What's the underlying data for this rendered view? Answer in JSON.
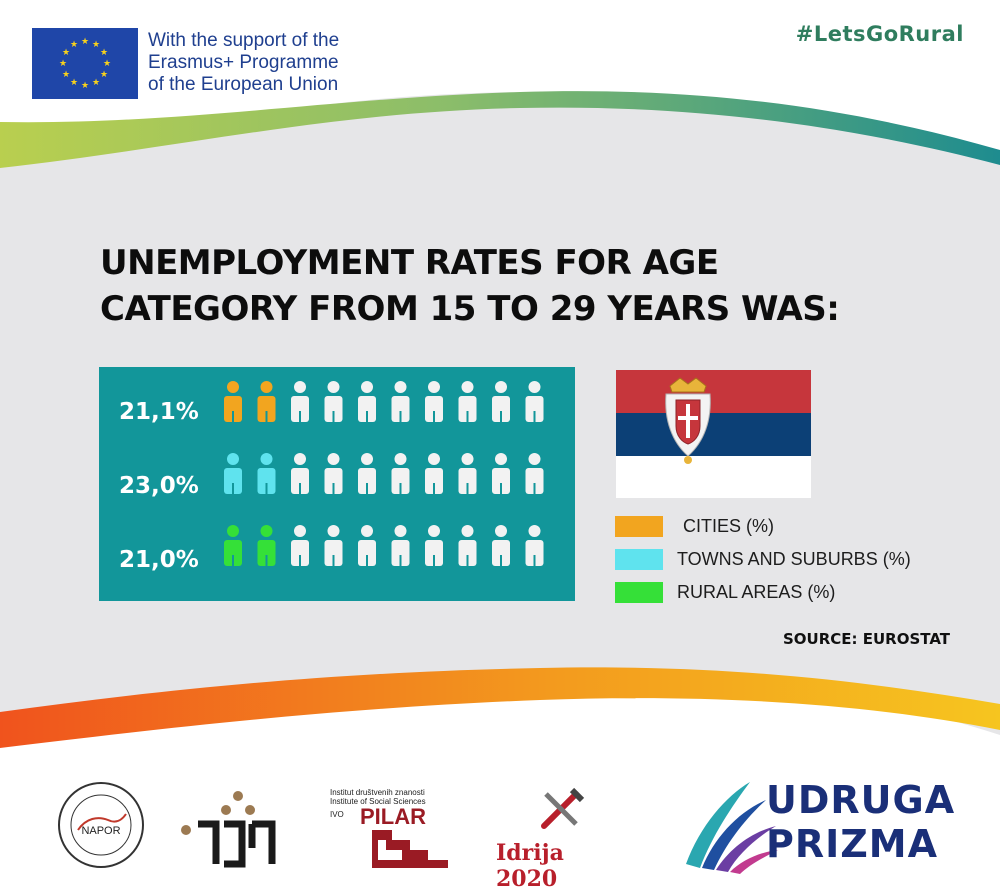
{
  "header": {
    "eu_text": [
      "With the support of the",
      "Erasmus+ Programme",
      "of the European Union"
    ],
    "hashtag": "#LetsGoRural"
  },
  "title": {
    "line1": "UNEMPLOYMENT  RATES FOR AGE",
    "line2": "CATEGORY FROM 15 TO 29 YEARS WAS:"
  },
  "chart_data": {
    "type": "pictogram",
    "icons_per_row": 10,
    "series": [
      {
        "name": "CITIES (%)",
        "value": 21.1,
        "label": "21,1%",
        "color": "#f2a51f"
      },
      {
        "name": "TOWNS AND SUBURBS (%)",
        "value": 23.0,
        "label": "23,0%",
        "color": "#5fe3ee"
      },
      {
        "name": "RURAL AREAS (%)",
        "value": 21.0,
        "label": "21,0%",
        "color": "#35e038"
      }
    ]
  },
  "legend": {
    "items": [
      {
        "label": "CITIES (%)",
        "color": "#f2a51f"
      },
      {
        "label": "TOWNS AND SUBURBS (%)",
        "color": "#5fe3ee"
      },
      {
        "label": "RURAL AREAS (%)",
        "color": "#35e038"
      }
    ]
  },
  "source": "SOURCE: EUROSTAT",
  "footer": {
    "logos": [
      {
        "name": "napor-logo",
        "text": "NAPOR"
      },
      {
        "name": "hupo-logo",
        "text": ""
      },
      {
        "name": "pilar-logo",
        "line1": "Institut društvenih znanosti",
        "line2": "Institute of Social Sciences",
        "line3": "IVO",
        "line4": "PILAR"
      },
      {
        "name": "idrija-logo",
        "text": "Idrija 2020"
      },
      {
        "name": "prizma-logo",
        "line1": "UDRUGA",
        "line2": "PRIZMA"
      }
    ]
  },
  "colors": {
    "panel": "#12969a",
    "background_gray": "#e6e6e8",
    "icon_white": "#f2f2f2"
  }
}
